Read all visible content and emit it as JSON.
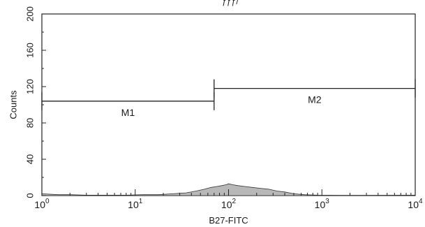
{
  "chart_data": {
    "type": "area",
    "title_fragment": "ƒƒƒ/",
    "xlabel": "B27-FITC",
    "ylabel": "Counts",
    "xscale": "log",
    "xlim": [
      1,
      10000
    ],
    "ylim": [
      0,
      200
    ],
    "xticks": [
      {
        "value": 1,
        "base": "10",
        "exp": "0"
      },
      {
        "value": 10,
        "base": "10",
        "exp": "1"
      },
      {
        "value": 100,
        "base": "10",
        "exp": "2"
      },
      {
        "value": 1000,
        "base": "10",
        "exp": "3"
      },
      {
        "value": 10000,
        "base": "10",
        "exp": "4"
      }
    ],
    "yticks": [
      "0",
      "40",
      "80",
      "120",
      "160",
      "200"
    ],
    "markers": [
      {
        "label": "M1",
        "start": 1,
        "end": 70,
        "y": 104
      },
      {
        "label": "M2",
        "start": 70,
        "end": 10000,
        "y": 118
      }
    ],
    "series": [
      {
        "x": [
          1,
          1.5,
          2,
          3,
          5,
          8,
          12,
          18,
          25,
          35,
          45,
          55,
          65,
          75,
          85,
          95,
          100,
          110,
          125,
          150,
          180,
          220,
          270,
          330,
          400,
          500,
          650,
          900,
          1500,
          3000,
          10000
        ],
        "y": [
          2,
          1,
          1,
          0.5,
          0.5,
          0.5,
          1,
          1,
          2,
          3,
          5,
          7,
          9,
          10,
          11,
          12,
          13,
          12,
          11,
          10,
          9,
          8,
          7,
          5,
          4,
          2,
          1,
          0.5,
          0.3,
          0.2,
          0.5
        ]
      }
    ],
    "grid": false
  }
}
